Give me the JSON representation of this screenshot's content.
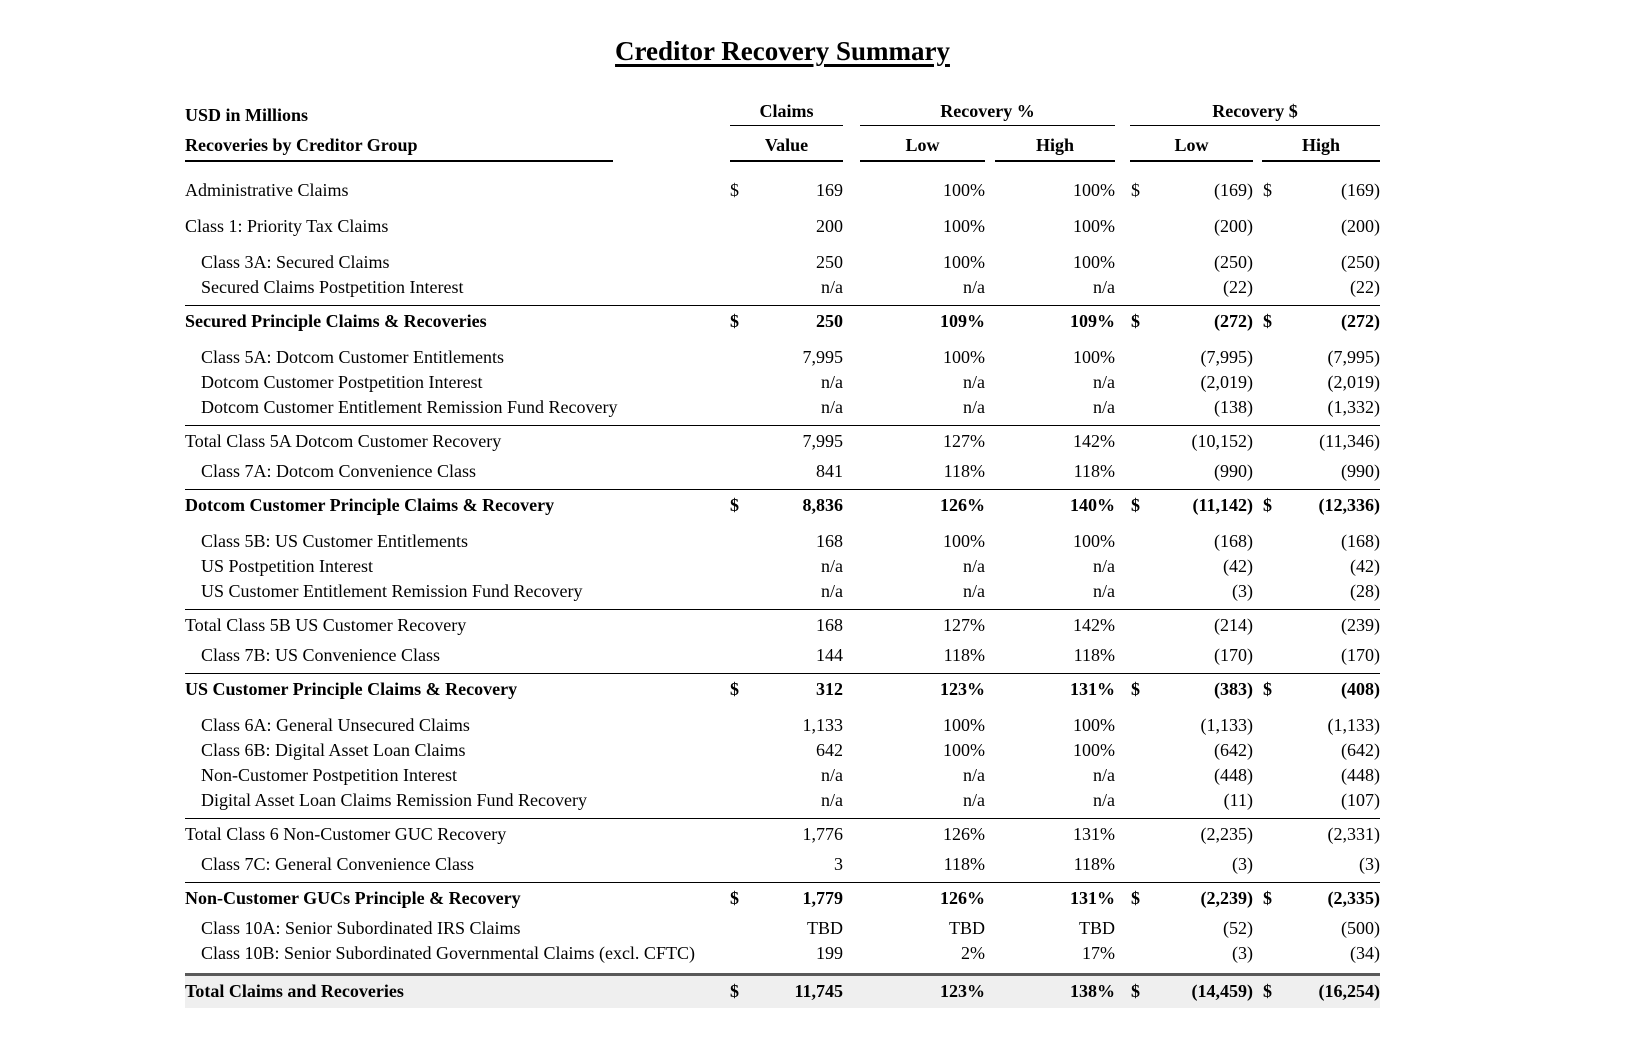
{
  "title": "Creditor Recovery Summary",
  "table": {
    "unit_note": "USD in Millions",
    "row_header": "Recoveries by Creditor Group",
    "col_groups": {
      "claims": "Claims",
      "recovery_pct": "Recovery %",
      "recovery_usd": "Recovery $"
    },
    "subheaders": {
      "value": "Value",
      "pct_low": "Low",
      "pct_high": "High",
      "usd_low": "Low",
      "usd_high": "High"
    },
    "style_colors": {
      "grand_total_background": "#efefef",
      "grand_total_border": "#595959",
      "rule_border": "#000000"
    }
  },
  "rows": [
    {
      "label": "Administrative Claims",
      "indent": false,
      "style": "plain",
      "gap": "none",
      "d1": "$",
      "value": "169",
      "pct_low": "100%",
      "pct_high": "100%",
      "d2": "$",
      "usd_low": "(169)",
      "d3": "$",
      "usd_high": "(169)"
    },
    {
      "label": "Class 1: Priority Tax Claims",
      "indent": false,
      "style": "plain",
      "gap": "md",
      "d1": "",
      "value": "200",
      "pct_low": "100%",
      "pct_high": "100%",
      "d2": "",
      "usd_low": "(200)",
      "d3": "",
      "usd_high": "(200)"
    },
    {
      "label": "Class 3A: Secured Claims",
      "indent": true,
      "style": "plain",
      "gap": "md",
      "d1": "",
      "value": "250",
      "pct_low": "100%",
      "pct_high": "100%",
      "d2": "",
      "usd_low": "(250)",
      "d3": "",
      "usd_high": "(250)"
    },
    {
      "label": "Secured Claims Postpetition Interest",
      "indent": true,
      "style": "plain",
      "gap": "none",
      "d1": "",
      "value": "n/a",
      "pct_low": "n/a",
      "pct_high": "n/a",
      "d2": "",
      "usd_low": "(22)",
      "d3": "",
      "usd_high": "(22)"
    },
    {
      "label": "Secured Principle Claims & Recoveries",
      "indent": false,
      "style": "rule-bold",
      "gap": "none",
      "d1": "$",
      "value": "250",
      "pct_low": "109%",
      "pct_high": "109%",
      "d2": "$",
      "usd_low": "(272)",
      "d3": "$",
      "usd_high": "(272)"
    },
    {
      "label": "Class 5A: Dotcom Customer Entitlements",
      "indent": true,
      "style": "plain",
      "gap": "md",
      "d1": "",
      "value": "7,995",
      "pct_low": "100%",
      "pct_high": "100%",
      "d2": "",
      "usd_low": "(7,995)",
      "d3": "",
      "usd_high": "(7,995)"
    },
    {
      "label": "Dotcom Customer Postpetition Interest",
      "indent": true,
      "style": "plain",
      "gap": "none",
      "d1": "",
      "value": "n/a",
      "pct_low": "n/a",
      "pct_high": "n/a",
      "d2": "",
      "usd_low": "(2,019)",
      "d3": "",
      "usd_high": "(2,019)"
    },
    {
      "label": "Dotcom Customer Entitlement Remission Fund Recovery",
      "indent": true,
      "style": "plain",
      "gap": "none",
      "d1": "",
      "value": "n/a",
      "pct_low": "n/a",
      "pct_high": "n/a",
      "d2": "",
      "usd_low": "(138)",
      "d3": "",
      "usd_high": "(1,332)"
    },
    {
      "label": "Total Class 5A Dotcom Customer Recovery",
      "indent": false,
      "style": "rule",
      "gap": "none",
      "d1": "",
      "value": "7,995",
      "pct_low": "127%",
      "pct_high": "142%",
      "d2": "",
      "usd_low": "(10,152)",
      "d3": "",
      "usd_high": "(11,346)"
    },
    {
      "label": "Class 7A: Dotcom Convenience Class",
      "indent": true,
      "style": "plain",
      "gap": "sm",
      "d1": "",
      "value": "841",
      "pct_low": "118%",
      "pct_high": "118%",
      "d2": "",
      "usd_low": "(990)",
      "d3": "",
      "usd_high": "(990)"
    },
    {
      "label": "Dotcom Customer Principle Claims & Recovery",
      "indent": false,
      "style": "rule-bold",
      "gap": "none",
      "d1": "$",
      "value": "8,836",
      "pct_low": "126%",
      "pct_high": "140%",
      "d2": "$",
      "usd_low": "(11,142)",
      "d3": "$",
      "usd_high": "(12,336)"
    },
    {
      "label": "Class 5B: US Customer Entitlements",
      "indent": true,
      "style": "plain",
      "gap": "md",
      "d1": "",
      "value": "168",
      "pct_low": "100%",
      "pct_high": "100%",
      "d2": "",
      "usd_low": "(168)",
      "d3": "",
      "usd_high": "(168)"
    },
    {
      "label": "US Postpetition Interest",
      "indent": true,
      "style": "plain",
      "gap": "none",
      "d1": "",
      "value": "n/a",
      "pct_low": "n/a",
      "pct_high": "n/a",
      "d2": "",
      "usd_low": "(42)",
      "d3": "",
      "usd_high": "(42)"
    },
    {
      "label": "US Customer Entitlement Remission Fund Recovery",
      "indent": true,
      "style": "plain",
      "gap": "none",
      "d1": "",
      "value": "n/a",
      "pct_low": "n/a",
      "pct_high": "n/a",
      "d2": "",
      "usd_low": "(3)",
      "d3": "",
      "usd_high": "(28)"
    },
    {
      "label": "Total Class 5B US Customer Recovery",
      "indent": false,
      "style": "rule",
      "gap": "none",
      "d1": "",
      "value": "168",
      "pct_low": "127%",
      "pct_high": "142%",
      "d2": "",
      "usd_low": "(214)",
      "d3": "",
      "usd_high": "(239)"
    },
    {
      "label": "Class 7B: US Convenience Class",
      "indent": true,
      "style": "plain",
      "gap": "sm",
      "d1": "",
      "value": "144",
      "pct_low": "118%",
      "pct_high": "118%",
      "d2": "",
      "usd_low": "(170)",
      "d3": "",
      "usd_high": "(170)"
    },
    {
      "label": "US Customer Principle Claims & Recovery",
      "indent": false,
      "style": "rule-bold",
      "gap": "none",
      "d1": "$",
      "value": "312",
      "pct_low": "123%",
      "pct_high": "131%",
      "d2": "$",
      "usd_low": "(383)",
      "d3": "$",
      "usd_high": "(408)"
    },
    {
      "label": "Class 6A: General Unsecured Claims",
      "indent": true,
      "style": "plain",
      "gap": "md",
      "d1": "",
      "value": "1,133",
      "pct_low": "100%",
      "pct_high": "100%",
      "d2": "",
      "usd_low": "(1,133)",
      "d3": "",
      "usd_high": "(1,133)"
    },
    {
      "label": "Class 6B: Digital Asset Loan Claims",
      "indent": true,
      "style": "plain",
      "gap": "none",
      "d1": "",
      "value": "642",
      "pct_low": "100%",
      "pct_high": "100%",
      "d2": "",
      "usd_low": "(642)",
      "d3": "",
      "usd_high": "(642)"
    },
    {
      "label": "Non-Customer Postpetition Interest",
      "indent": true,
      "style": "plain",
      "gap": "none",
      "d1": "",
      "value": "n/a",
      "pct_low": "n/a",
      "pct_high": "n/a",
      "d2": "",
      "usd_low": "(448)",
      "d3": "",
      "usd_high": "(448)"
    },
    {
      "label": "Digital Asset Loan Claims Remission Fund Recovery",
      "indent": true,
      "style": "plain",
      "gap": "none",
      "d1": "",
      "value": "n/a",
      "pct_low": "n/a",
      "pct_high": "n/a",
      "d2": "",
      "usd_low": "(11)",
      "d3": "",
      "usd_high": "(107)"
    },
    {
      "label": "Total Class 6 Non-Customer GUC Recovery",
      "indent": false,
      "style": "rule",
      "gap": "none",
      "d1": "",
      "value": "1,776",
      "pct_low": "126%",
      "pct_high": "131%",
      "d2": "",
      "usd_low": "(2,235)",
      "d3": "",
      "usd_high": "(2,331)"
    },
    {
      "label": "Class 7C: General Convenience Class",
      "indent": true,
      "style": "plain",
      "gap": "sm",
      "d1": "",
      "value": "3",
      "pct_low": "118%",
      "pct_high": "118%",
      "d2": "",
      "usd_low": "(3)",
      "d3": "",
      "usd_high": "(3)"
    },
    {
      "label": "Non-Customer GUCs Principle & Recovery",
      "indent": false,
      "style": "rule-bold",
      "gap": "none",
      "d1": "$",
      "value": "1,779",
      "pct_low": "126%",
      "pct_high": "131%",
      "d2": "$",
      "usd_low": "(2,239)",
      "d3": "$",
      "usd_high": "(2,335)"
    },
    {
      "label": "Class 10A: Senior Subordinated IRS Claims",
      "indent": true,
      "style": "plain",
      "gap": "sm",
      "d1": "",
      "value": "TBD",
      "pct_low": "TBD",
      "pct_high": "TBD",
      "d2": "",
      "usd_low": "(52)",
      "d3": "",
      "usd_high": "(500)"
    },
    {
      "label": "Class 10B: Senior Subordinated Governmental Claims (excl. CFTC)",
      "indent": true,
      "style": "plain",
      "gap": "none",
      "d1": "",
      "value": "199",
      "pct_low": "2%",
      "pct_high": "17%",
      "d2": "",
      "usd_low": "(3)",
      "d3": "",
      "usd_high": "(34)"
    },
    {
      "label": "Total Claims and Recoveries",
      "indent": false,
      "style": "grand",
      "gap": "none",
      "d1": "$",
      "value": "11,745",
      "pct_low": "123%",
      "pct_high": "138%",
      "d2": "$",
      "usd_low": "(14,459)",
      "d3": "$",
      "usd_high": "(16,254)"
    }
  ]
}
